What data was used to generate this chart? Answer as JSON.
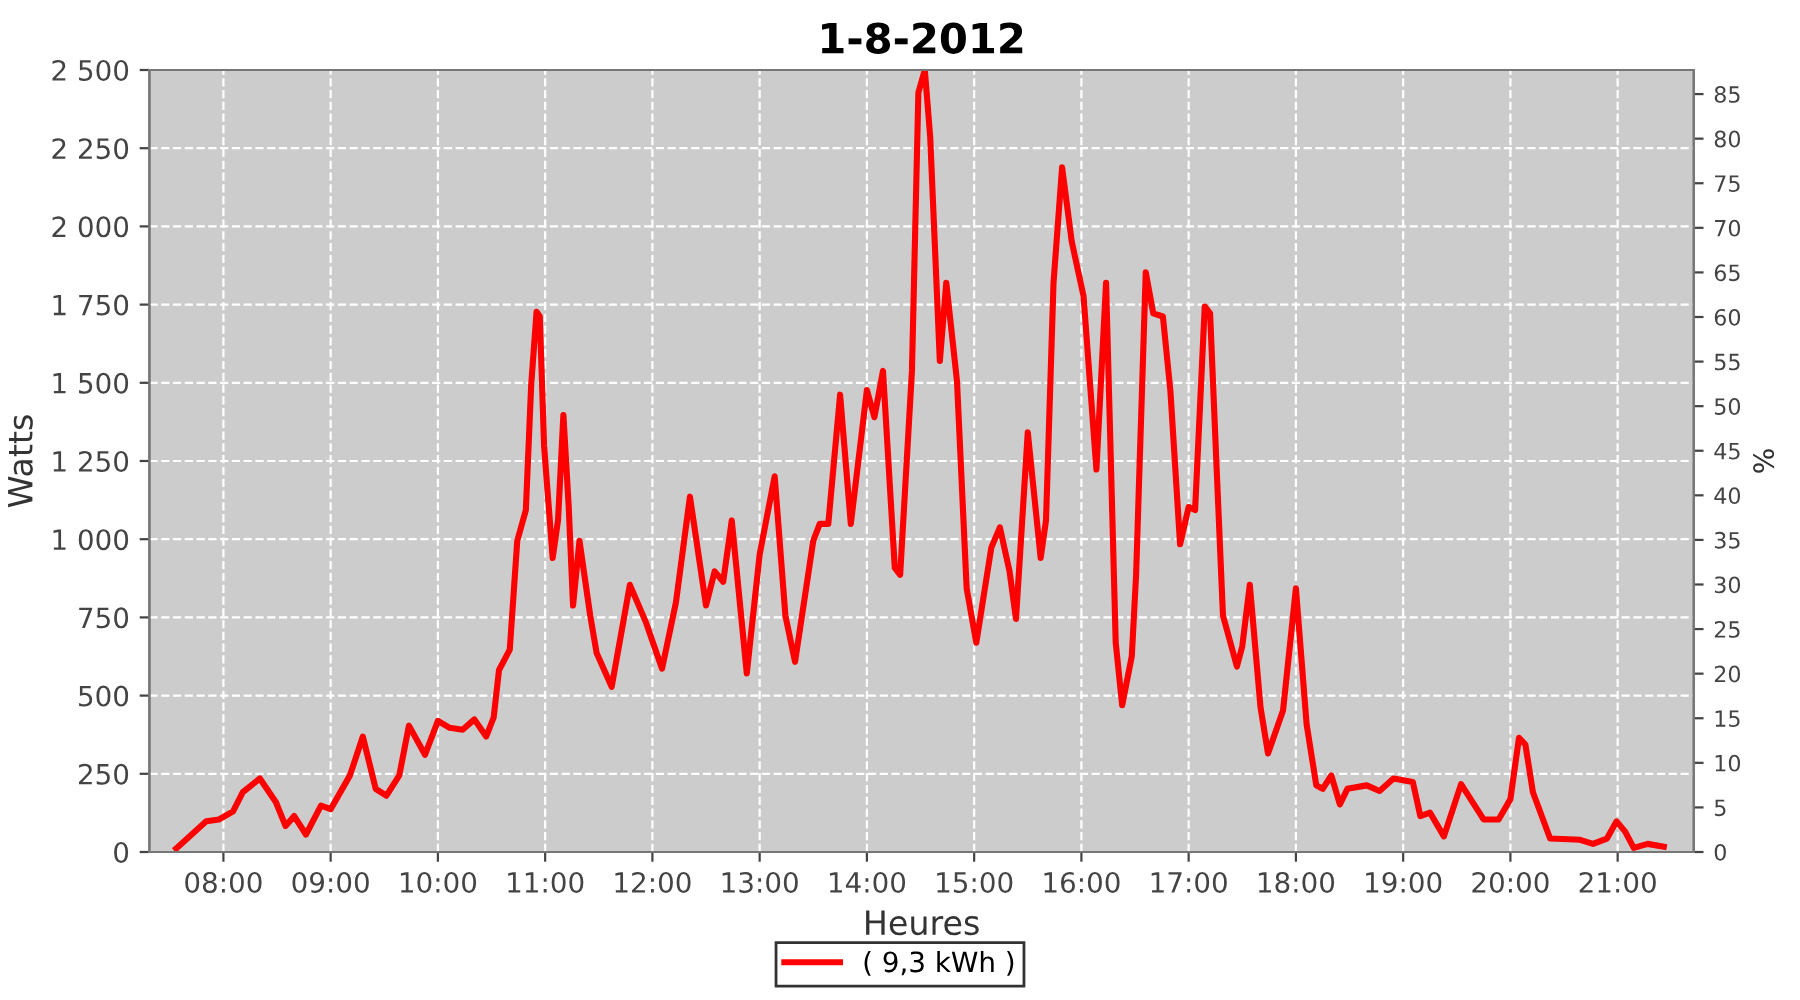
{
  "chart_data": {
    "type": "line",
    "title": "1-8-2012",
    "xlabel": "Heures",
    "ylabel": "Watts",
    "y2label": "%",
    "xlim": [
      7.31,
      21.71
    ],
    "xticks": [
      {
        "value": 8,
        "label": "08:00"
      },
      {
        "value": 9,
        "label": "09:00"
      },
      {
        "value": 10,
        "label": "10:00"
      },
      {
        "value": 11,
        "label": "11:00"
      },
      {
        "value": 12,
        "label": "12:00"
      },
      {
        "value": 13,
        "label": "13:00"
      },
      {
        "value": 14,
        "label": "14:00"
      },
      {
        "value": 15,
        "label": "15:00"
      },
      {
        "value": 16,
        "label": "16:00"
      },
      {
        "value": 17,
        "label": "17:00"
      },
      {
        "value": 18,
        "label": "18:00"
      },
      {
        "value": 19,
        "label": "19:00"
      },
      {
        "value": 20,
        "label": "20:00"
      },
      {
        "value": 21,
        "label": "21:00"
      }
    ],
    "ylim": [
      0,
      2500
    ],
    "yticks": [
      0,
      250,
      500,
      750,
      {
        "value": 1000,
        "label": "1 000"
      },
      {
        "value": 1250,
        "label": "1 250"
      },
      {
        "value": 1500,
        "label": "1 500"
      },
      {
        "value": 1750,
        "label": "1 750"
      },
      {
        "value": 2000,
        "label": "2 000"
      },
      {
        "value": 2250,
        "label": "2 250"
      },
      {
        "value": 2500,
        "label": "2 500"
      }
    ],
    "y2lim": [
      0,
      87.7
    ],
    "y2ticks": [
      0,
      5,
      10,
      15,
      20,
      25,
      30,
      35,
      40,
      45,
      50,
      55,
      60,
      65,
      70,
      75,
      80,
      85
    ],
    "grid": true,
    "legend": "bottom",
    "marker": "none",
    "line_style": "solid",
    "series": [
      {
        "name": "( 9,3 kWh )",
        "color": "#ff0000",
        "x": [
          7.56,
          7.84,
          7.96,
          8.09,
          8.18,
          8.34,
          8.49,
          8.58,
          8.66,
          8.77,
          8.91,
          9.0,
          9.18,
          9.3,
          9.42,
          9.52,
          9.64,
          9.73,
          9.88,
          10.0,
          10.11,
          10.23,
          10.34,
          10.45,
          10.52,
          10.57,
          10.67,
          10.74,
          10.82,
          10.87,
          10.92,
          10.95,
          10.99,
          11.07,
          11.12,
          11.17,
          11.22,
          11.26,
          11.32,
          11.42,
          11.48,
          11.62,
          11.79,
          11.94,
          12.09,
          12.22,
          12.35,
          12.5,
          12.58,
          12.66,
          12.74,
          12.88,
          13.0,
          13.14,
          13.24,
          13.33,
          13.5,
          13.56,
          13.64,
          13.75,
          13.85,
          14.0,
          14.07,
          14.15,
          14.26,
          14.31,
          14.42,
          14.48,
          14.54,
          14.59,
          14.68,
          14.74,
          14.84,
          14.93,
          15.02,
          15.16,
          15.24,
          15.33,
          15.39,
          15.5,
          15.62,
          15.67,
          15.74,
          15.82,
          15.91,
          16.02,
          16.14,
          16.23,
          16.32,
          16.38,
          16.47,
          16.51,
          16.6,
          16.67,
          16.76,
          16.83,
          16.92,
          17.0,
          17.06,
          17.15,
          17.2,
          17.26,
          17.32,
          17.45,
          17.5,
          17.57,
          17.67,
          17.74,
          17.88,
          18.0,
          18.1,
          18.19,
          18.25,
          18.33,
          18.41,
          18.48,
          18.66,
          18.78,
          18.91,
          19.09,
          19.16,
          19.25,
          19.38,
          19.54,
          19.75,
          19.89,
          20.0,
          20.08,
          20.14,
          20.21,
          20.37,
          20.65,
          20.77,
          20.9,
          20.99,
          21.07,
          21.15,
          21.28,
          21.43
        ],
        "values": [
          11,
          98,
          104,
          130,
          191,
          235,
          159,
          83,
          115,
          56,
          148,
          137,
          245,
          369,
          202,
          180,
          245,
          404,
          311,
          419,
          397,
          391,
          424,
          369,
          430,
          582,
          647,
          995,
          1093,
          1494,
          1727,
          1712,
          1299,
          940,
          1060,
          1397,
          1102,
          788,
          995,
          756,
          636,
          528,
          854,
          734,
          586,
          799,
          1136,
          788,
          897,
          864,
          1060,
          571,
          951,
          1201,
          756,
          608,
          995,
          1049,
          1049,
          1462,
          1049,
          1477,
          1390,
          1538,
          908,
          886,
          1538,
          2428,
          2500,
          2287,
          1570,
          1820,
          1505,
          843,
          669,
          973,
          1038,
          897,
          745,
          1342,
          940,
          1060,
          1820,
          2189,
          1951,
          1777,
          1223,
          1820,
          669,
          469,
          626,
          886,
          1853,
          1722,
          1712,
          1473,
          984,
          1103,
          1093,
          1744,
          1722,
          1234,
          756,
          593,
          658,
          854,
          463,
          315,
          452,
          843,
          408,
          213,
          202,
          245,
          152,
          202,
          213,
          195,
          235,
          224,
          115,
          126,
          50,
          217,
          104,
          104,
          169,
          365,
          343,
          191,
          43,
          39,
          26,
          43,
          98,
          65,
          13,
          26,
          17
        ]
      }
    ]
  }
}
